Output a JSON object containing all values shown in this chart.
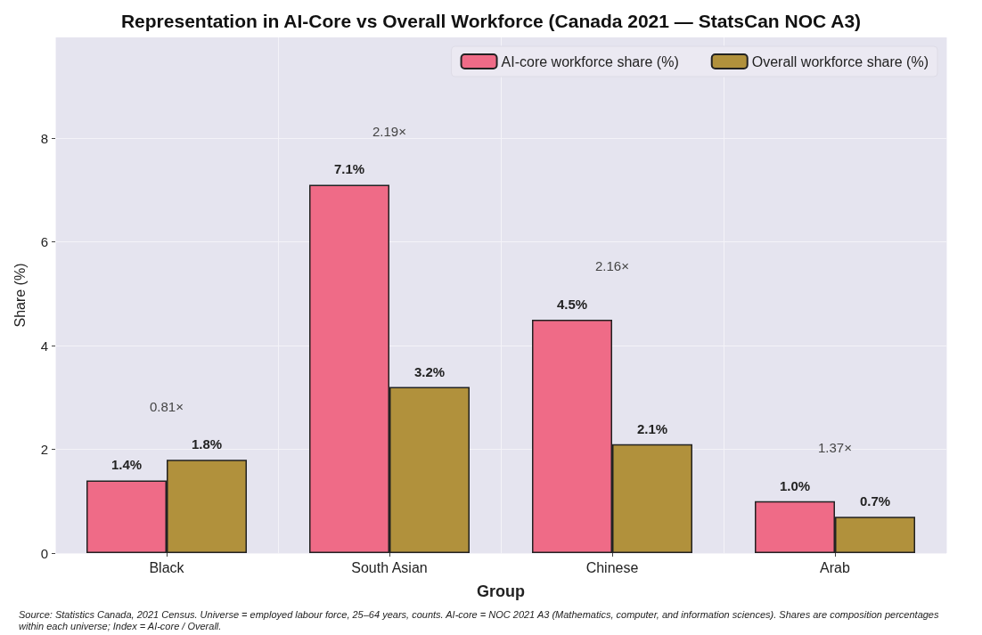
{
  "chart_data": {
    "type": "bar",
    "title": "Representation in AI-Core vs Overall Workforce (Canada 2021 — StatsCan NOC A3)",
    "xlabel": "Group",
    "ylabel": "Share (%)",
    "categories": [
      "Black",
      "South Asian",
      "Chinese",
      "Arab"
    ],
    "series": [
      {
        "name": "AI-core workforce share (%)",
        "color": "#ef6b87",
        "values": [
          1.4,
          7.1,
          4.5,
          1.0
        ],
        "value_labels": [
          "1.4%",
          "7.1%",
          "4.5%",
          "1.0%"
        ]
      },
      {
        "name": "Overall workforce share (%)",
        "color": "#b1913c",
        "values": [
          1.8,
          3.2,
          2.1,
          0.7
        ],
        "value_labels": [
          "1.8%",
          "3.2%",
          "2.1%",
          "0.7%"
        ]
      }
    ],
    "ylim": [
      0,
      9.94
    ],
    "yticks": [
      0,
      2,
      4,
      6,
      8
    ],
    "grid": true,
    "legend": "top right",
    "annotations": [
      "0.81×",
      "2.19×",
      "2.16×",
      "1.37×",
      "Source: Statistics Canada, 2021 Census. Universe = employed labour force, 25–64 years, counts. AI-core = NOC 2021 A3 (Mathematics, computer, and information sciences). Shares are composition percentages within each universe; Index = AI-core / Overall."
    ]
  }
}
